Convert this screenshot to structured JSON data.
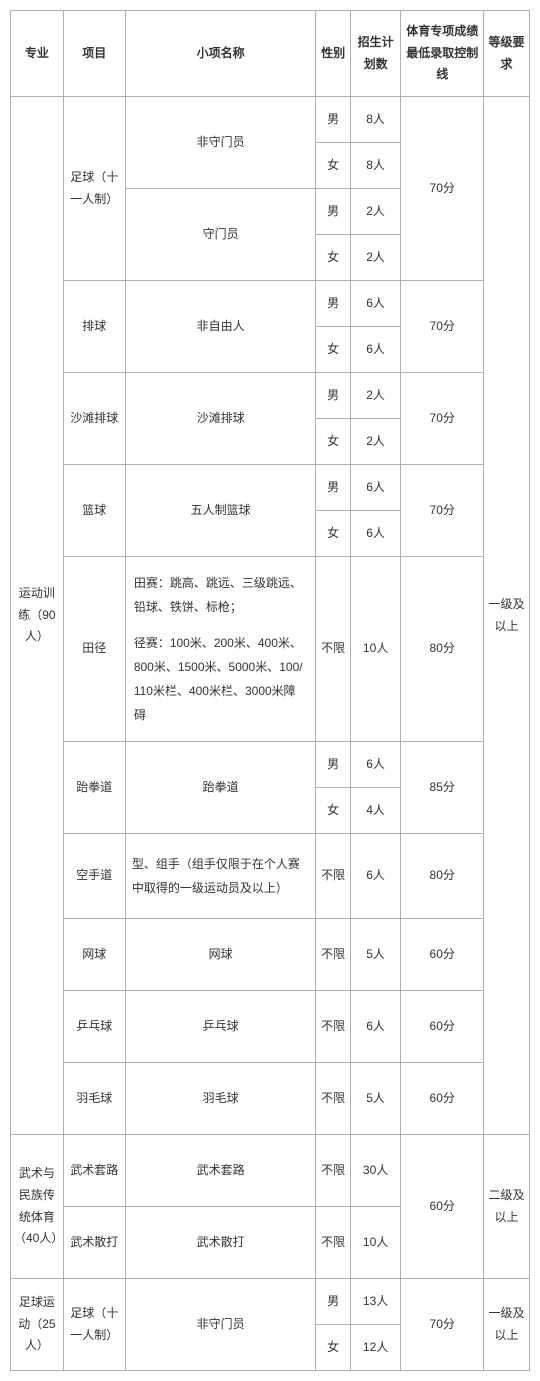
{
  "headers": {
    "major": "专业",
    "project": "项目",
    "subname": "小项名称",
    "sex": "性别",
    "plan": "招生计划数",
    "score": "体育专项成绩最低录取控制线",
    "level": "等级要求"
  },
  "major1": "运动训练（90人）",
  "major2": "武术与民族传统体育（40人）",
  "major3": "足球运动（25人）",
  "proj_football11": "足球（十一人制）",
  "proj_volleyball": "排球",
  "proj_beach": "沙滩排球",
  "proj_basketball": "篮球",
  "proj_track": "田径",
  "proj_taekwondo": "跆拳道",
  "proj_karate": "空手道",
  "proj_tennis": "网球",
  "proj_pingpong": "乒乓球",
  "proj_badminton": "羽毛球",
  "proj_wushu_routine": "武术套路",
  "proj_wushu_sanda": "武术散打",
  "proj_football11b": "足球（十一人制）",
  "sub_nongk": "非守门员",
  "sub_gk": "守门员",
  "sub_nonlibero": "非自由人",
  "sub_beach": "沙滩排球",
  "sub_5basket": "五人制篮球",
  "sub_track_desc": "田赛：跳高、跳远、三级跳远、铅球、铁饼、标枪；\n径赛：100米、200米、400米、800米、1500米、5000米、100/110米栏、400米栏、3000米障碍",
  "sub_taekwondo": "跆拳道",
  "sub_karate": "型、组手（组手仅限于在个人赛中取得的一级运动员及以上）",
  "sub_tennis": "网球",
  "sub_pingpong": "乒乓球",
  "sub_badminton": "羽毛球",
  "sub_wushu_routine": "武术套路",
  "sub_wushu_sanda": "武术散打",
  "sub_nongk2": "非守门员",
  "sex_m": "男",
  "sex_f": "女",
  "sex_any": "不限",
  "p_8": "8人",
  "p_2": "2人",
  "p_6": "6人",
  "p_4": "4人",
  "p_5": "5人",
  "p_10": "10人",
  "p_30": "30人",
  "p_13": "13人",
  "p_12": "12人",
  "sc_70": "70分",
  "sc_80": "80分",
  "sc_85": "85分",
  "sc_60": "60分",
  "lvl_1": "一级及以上",
  "lvl_2": "二级及以上"
}
